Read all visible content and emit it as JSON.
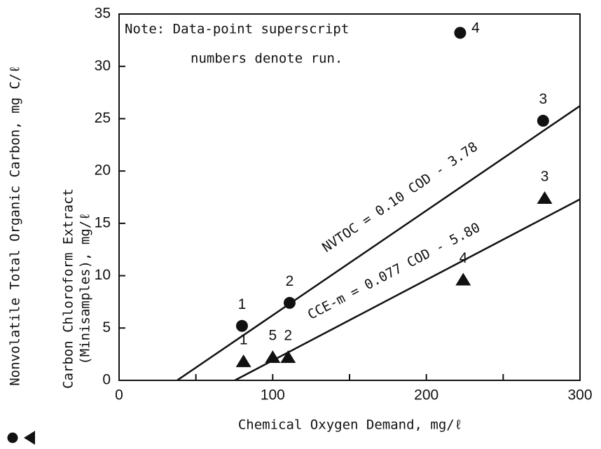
{
  "chart_data": {
    "type": "scatter",
    "xlabel": "Chemical Oxygen Demand, mg/ℓ",
    "xlim": [
      0,
      300
    ],
    "xticks": [
      0,
      100,
      200,
      300
    ],
    "xminor_ticks": [
      50,
      150,
      250
    ],
    "ylim": [
      0,
      35
    ],
    "yticks": [
      0,
      5,
      10,
      15,
      20,
      25,
      30,
      35
    ],
    "note": [
      "Note:  Data-point superscript",
      "numbers denote run."
    ],
    "series": [
      {
        "name_lines": [
          "Nonvolatile Total Organic Carbon, mg C/ℓ"
        ],
        "marker": "circle",
        "color": "#111111",
        "x": [
          80,
          111,
          222,
          276
        ],
        "values": [
          5.2,
          7.4,
          33.2,
          24.8
        ],
        "point_labels": [
          "1",
          "2",
          "4",
          "3"
        ]
      },
      {
        "name_lines": [
          "Carbon Chloroform Extract",
          "(Minisamples), mg/ℓ"
        ],
        "marker": "triangle",
        "color": "#111111",
        "x": [
          81,
          100,
          110,
          224,
          277
        ],
        "values": [
          1.8,
          2.2,
          2.2,
          9.6,
          17.4
        ],
        "point_labels": [
          "1",
          "5",
          "2",
          "4",
          "3"
        ]
      }
    ],
    "lines": [
      {
        "label": "NVTOC = 0.10 COD - 3.78",
        "slope": 0.1,
        "intercept": -3.78
      },
      {
        "label": "CCE-m = 0.077 COD - 5.80",
        "slope": 0.077,
        "intercept": -5.8
      }
    ]
  }
}
